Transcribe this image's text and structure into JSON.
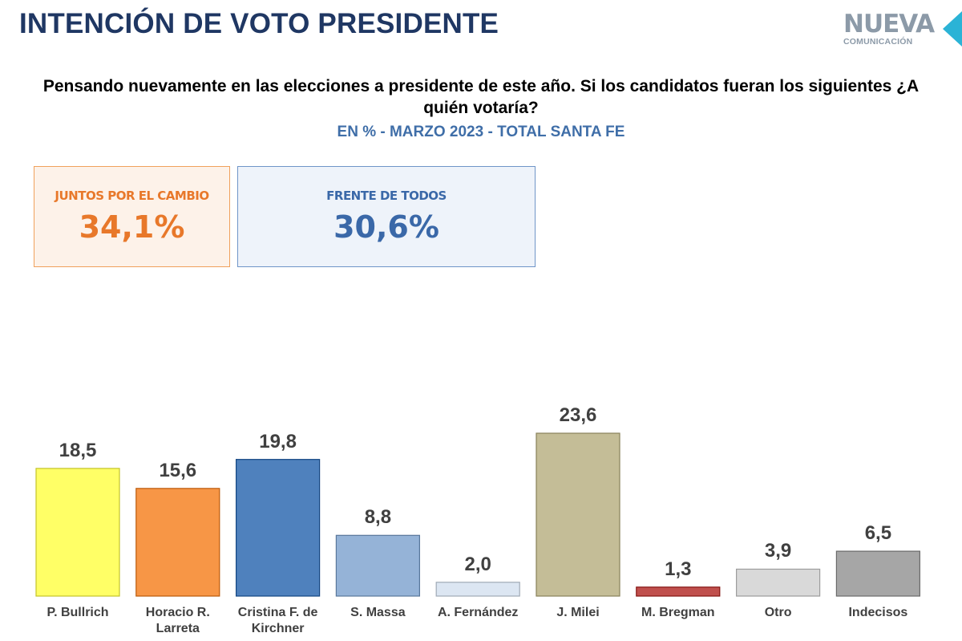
{
  "header": {
    "title": "INTENCIÓN DE VOTO PRESIDENTE",
    "logo_line1": "NUEVA",
    "logo_line2": "COMUNICACIÓN",
    "question": "Pensando nuevamente en las elecciones a presidente de este año. Si los candidatos fueran los siguientes ¿A quién votaría?",
    "subtitle": "EN % - MARZO 2023 - TOTAL SANTA FE"
  },
  "summary": {
    "jxc": {
      "label": "JUNTOS POR EL CAMBIO",
      "value": "34,1%"
    },
    "fdt": {
      "label": "FRENTE DE TODOS",
      "value": "30,6%"
    }
  },
  "chart_data": {
    "type": "bar",
    "categories": [
      "P. Bullrich",
      "Horacio R. Larreta",
      "Cristina F. de Kirchner",
      "S. Massa",
      "A. Fernández",
      "J. Milei",
      "M. Bregman",
      "Otro",
      "Indecisos"
    ],
    "values": [
      18.5,
      15.6,
      19.8,
      8.8,
      2.0,
      23.6,
      1.3,
      3.9,
      6.5
    ],
    "value_labels": [
      "18,5",
      "15,6",
      "19,8",
      "8,8",
      "2,0",
      "23,6",
      "1,3",
      "3,9",
      "6,5"
    ],
    "colors": [
      "#ffff66",
      "#f79646",
      "#4f81bd",
      "#95b3d7",
      "#dce6f2",
      "#c4bd97",
      "#c0504d",
      "#d9d9d9",
      "#a6a6a6"
    ],
    "ylim": [
      0,
      25
    ]
  }
}
